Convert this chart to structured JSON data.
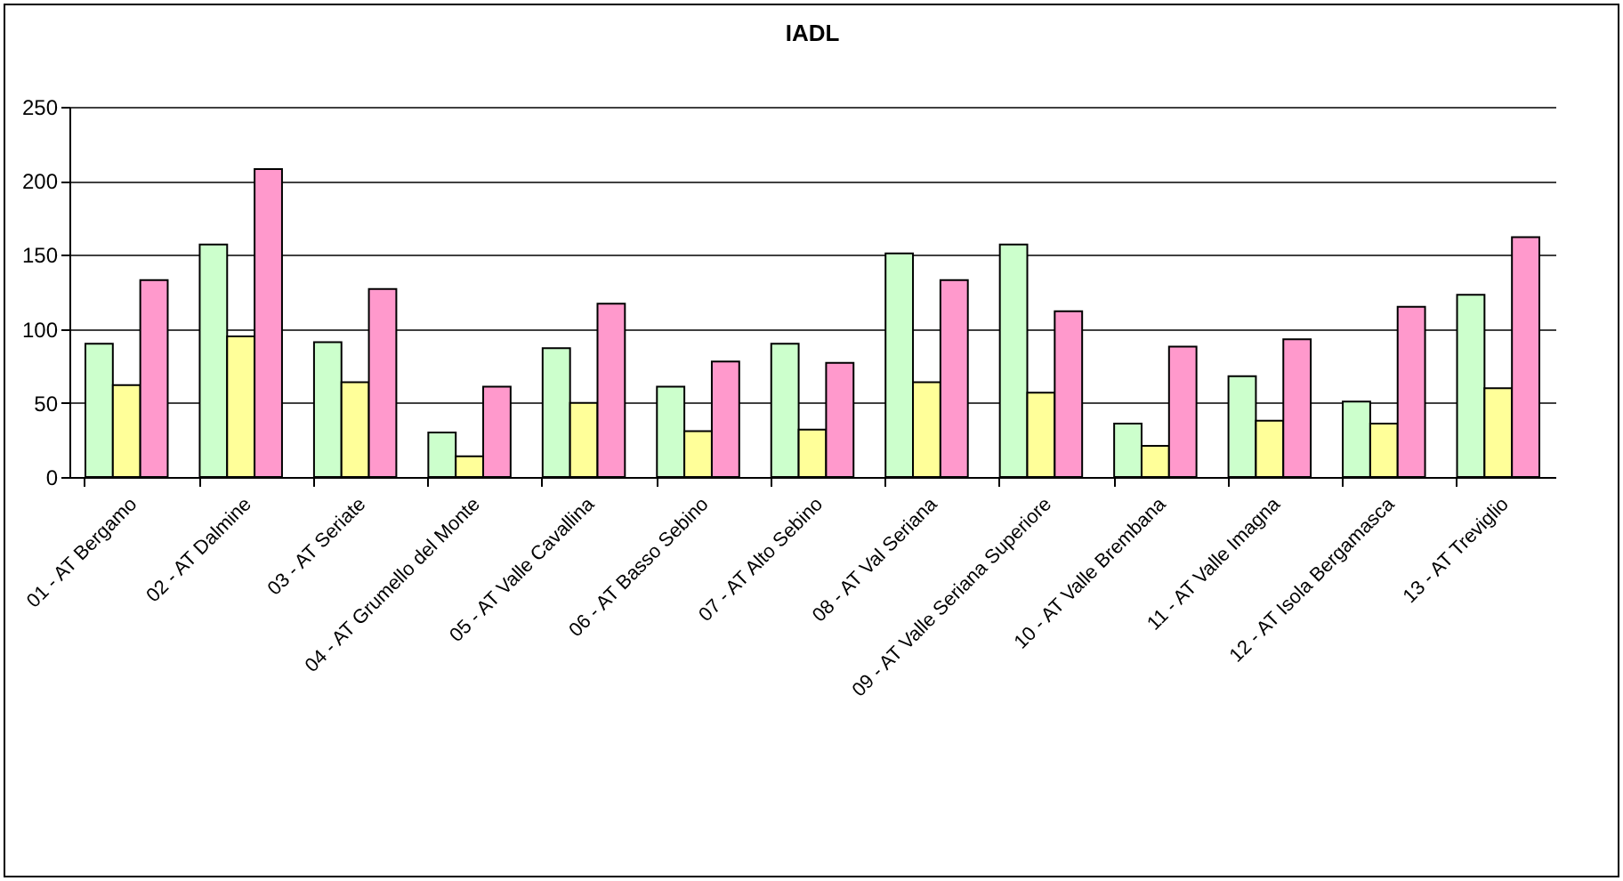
{
  "chart_data": {
    "type": "bar",
    "title": "IADL",
    "categories": [
      "01 - AT Bergamo",
      "02 - AT Dalmine",
      "03 - AT Seriate",
      "04 - AT Grumello del Monte",
      "05 - AT Valle Cavallina",
      "06 - AT Basso Sebino",
      "07 - AT Alto Sebino",
      "08 - AT Val Seriana",
      "09 - AT Valle Seriana Superiore",
      "10 - AT Valle Brembana",
      "11 - AT Valle Imagna",
      "12 - AT Isola Bergamasca",
      "13 - AT Treviglio"
    ],
    "series": [
      {
        "color": "#ccffcc",
        "values": [
          90,
          157,
          91,
          30,
          87,
          61,
          90,
          151,
          157,
          36,
          68,
          51,
          123
        ]
      },
      {
        "color": "#ffff99",
        "values": [
          62,
          95,
          64,
          14,
          50,
          31,
          32,
          64,
          57,
          21,
          38,
          36,
          60
        ]
      },
      {
        "color": "#ff99cc",
        "values": [
          133,
          208,
          127,
          61,
          117,
          78,
          77,
          133,
          112,
          88,
          93,
          115,
          162
        ]
      }
    ],
    "ylim": [
      0,
      250
    ],
    "yticks": [
      0,
      50,
      100,
      150,
      200,
      250
    ],
    "grid": "y",
    "legend": false
  }
}
